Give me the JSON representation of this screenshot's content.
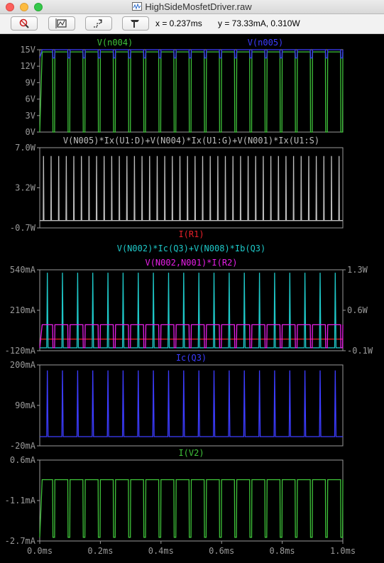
{
  "window": {
    "title": "HighSideMosfetDriver.raw"
  },
  "toolbar": {
    "buttons": [
      {
        "name": "zoom-to-fit-icon"
      },
      {
        "name": "autorange-icon"
      },
      {
        "name": "zoom-back-icon"
      },
      {
        "name": "pick-visible-traces-icon"
      }
    ],
    "cursor_x": "x = 0.237ms",
    "cursor_y": "y = 73.33mA, 0.310W"
  },
  "colors": {
    "green": "#3fc33a",
    "blue": "#3c3cff",
    "gray": "#bdbdbd",
    "red": "#e8202a",
    "cyan": "#1ec8c8",
    "magenta": "#e81ee8",
    "axis": "#9a9a9a"
  },
  "xaxis": {
    "ticks": [
      "0.0ms",
      "0.2ms",
      "0.4ms",
      "0.6ms",
      "0.8ms",
      "1.0ms"
    ],
    "range": [
      0,
      1.0
    ],
    "unit": "ms"
  },
  "chart_data": [
    {
      "type": "line",
      "pane": 1,
      "legend": [
        {
          "label": "V(n004)",
          "color": "green"
        },
        {
          "label": "V(n005)",
          "color": "blue"
        }
      ],
      "yticks_left": [
        "15V",
        "12V",
        "9V",
        "6V",
        "3V",
        "0V"
      ],
      "ylim": [
        0,
        15
      ],
      "series": [
        {
          "name": "V(n004)",
          "pattern": "pulse",
          "low": 0,
          "high": 14.6,
          "periods": 20,
          "duty": 0.85
        },
        {
          "name": "V(n005)",
          "pattern": "pulse",
          "low": 13.5,
          "high": 15,
          "periods": 20,
          "duty": 0.85
        }
      ]
    },
    {
      "type": "line",
      "pane": 2,
      "legend": [
        {
          "label": "V(N005)*Ix(U1:D)+V(N004)*Ix(U1:G)+V(N001)*Ix(U1:S)",
          "color": "gray"
        }
      ],
      "yticks_left": [
        "7.0W",
        "3.2W",
        "-0.7W"
      ],
      "ylim": [
        -0.7,
        7.0
      ],
      "series": [
        {
          "name": "V(N005)*Ix(U1:D)+V(N004)*Ix(U1:G)+V(N001)*Ix(U1:S)",
          "pattern": "spikes",
          "base": 0.0,
          "peak": 6.2,
          "periods": 40
        }
      ]
    },
    {
      "type": "line",
      "pane": 3,
      "legend": [
        {
          "label": "I(R1)",
          "color": "red"
        },
        {
          "label": "V(N002)*Ic(Q3)+V(N008)*Ib(Q3)",
          "color": "cyan"
        },
        {
          "label": "V(N002,N001)*I(R2)",
          "color": "magenta"
        }
      ],
      "yticks_left": [
        "540mA",
        "210mA",
        "-120mA"
      ],
      "yticks_right": [
        "1.3W",
        "0.6W",
        "-0.1W"
      ],
      "ylim": [
        -120,
        540
      ],
      "ylim_right": [
        -0.1,
        1.3
      ],
      "series": [
        {
          "name": "I(R1)",
          "pattern": "flat",
          "value": -25
        },
        {
          "name": "V(N002)*Ic(Q3)+V(N008)*Ib(Q3)",
          "pattern": "spikes",
          "base": -0.05,
          "peak": 1.25,
          "periods": 20
        },
        {
          "name": "V(N002,N001)*I(R2)",
          "pattern": "pulse",
          "low": -0.05,
          "high": 0.35,
          "periods": 20,
          "duty": 0.85
        }
      ]
    },
    {
      "type": "line",
      "pane": 4,
      "legend": [
        {
          "label": "Ic(Q3)",
          "color": "blue"
        }
      ],
      "yticks_left": [
        "200mA",
        "90mA",
        "-20mA"
      ],
      "ylim": [
        -20,
        200
      ],
      "series": [
        {
          "name": "Ic(Q3)",
          "pattern": "spikes",
          "base": 5,
          "peak": 185,
          "periods": 20
        }
      ]
    },
    {
      "type": "line",
      "pane": 5,
      "legend": [
        {
          "label": "I(V2)",
          "color": "green"
        }
      ],
      "yticks_left": [
        "0.6mA",
        "-1.1mA",
        "-2.7mA"
      ],
      "ylim": [
        -2.7,
        0.6
      ],
      "series": [
        {
          "name": "I(V2)",
          "pattern": "pulse",
          "low": -2.55,
          "high": -0.2,
          "periods": 20,
          "duty": 0.85
        }
      ]
    }
  ]
}
